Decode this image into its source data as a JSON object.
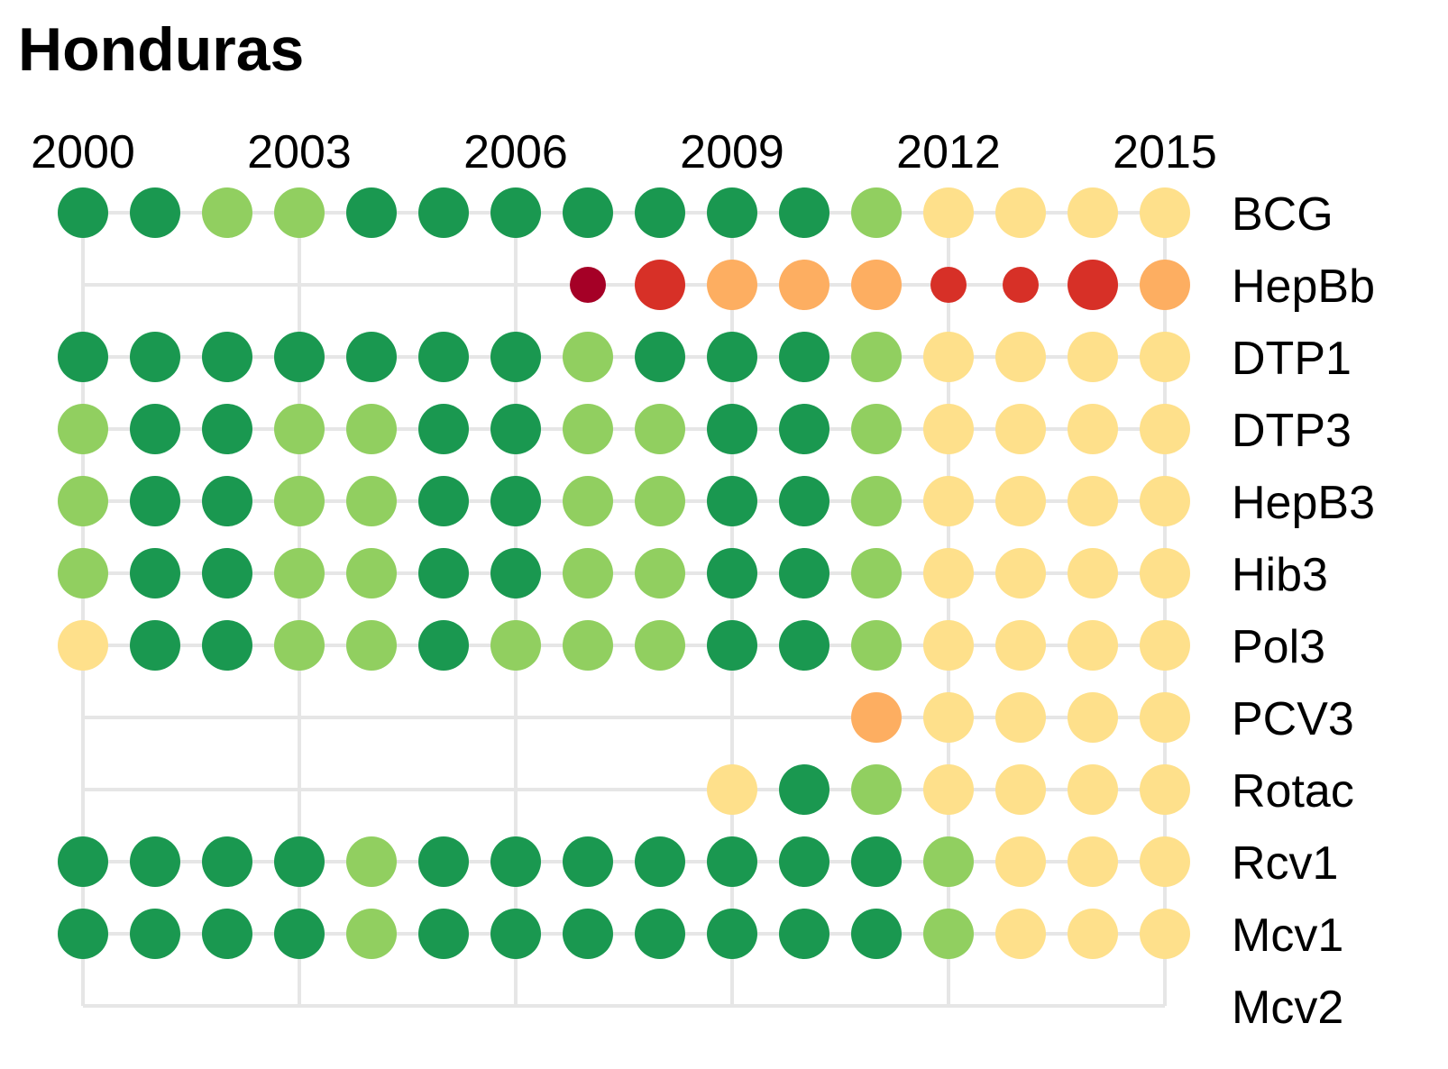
{
  "chart_data": {
    "type": "scatter",
    "title": "Honduras",
    "xlabel": "",
    "ylabel": "",
    "x_ticks": [
      "2000",
      "2003",
      "2006",
      "2009",
      "2012",
      "2015"
    ],
    "xlim": [
      2000,
      2015
    ],
    "years": [
      2000,
      2001,
      2002,
      2003,
      2004,
      2005,
      2006,
      2007,
      2008,
      2009,
      2010,
      2011,
      2012,
      2013,
      2014,
      2015
    ],
    "colors": {
      "dark_green": "#1a9850",
      "light_green": "#91cf60",
      "pale_yellow": "#fee08b",
      "light_orange": "#fdae61",
      "red": "#d73027",
      "dark_red": "#a50026"
    },
    "rows": [
      {
        "label": "BCG",
        "cells": [
          "dark_green",
          "dark_green",
          "light_green",
          "light_green",
          "dark_green",
          "dark_green",
          "dark_green",
          "dark_green",
          "dark_green",
          "dark_green",
          "dark_green",
          "light_green",
          "pale_yellow",
          "pale_yellow",
          "pale_yellow",
          "pale_yellow"
        ]
      },
      {
        "label": "HepBb",
        "cells": [
          null,
          null,
          null,
          null,
          null,
          null,
          null,
          "dark_red",
          "red",
          "light_orange",
          "light_orange",
          "light_orange",
          "red",
          "red",
          "red",
          "light_orange"
        ],
        "small": [
          false,
          false,
          false,
          false,
          false,
          false,
          false,
          true,
          false,
          false,
          false,
          false,
          true,
          true,
          false,
          false
        ]
      },
      {
        "label": "DTP1",
        "cells": [
          "dark_green",
          "dark_green",
          "dark_green",
          "dark_green",
          "dark_green",
          "dark_green",
          "dark_green",
          "light_green",
          "dark_green",
          "dark_green",
          "dark_green",
          "light_green",
          "pale_yellow",
          "pale_yellow",
          "pale_yellow",
          "pale_yellow"
        ]
      },
      {
        "label": "DTP3",
        "cells": [
          "light_green",
          "dark_green",
          "dark_green",
          "light_green",
          "light_green",
          "dark_green",
          "dark_green",
          "light_green",
          "light_green",
          "dark_green",
          "dark_green",
          "light_green",
          "pale_yellow",
          "pale_yellow",
          "pale_yellow",
          "pale_yellow"
        ]
      },
      {
        "label": "HepB3",
        "cells": [
          "light_green",
          "dark_green",
          "dark_green",
          "light_green",
          "light_green",
          "dark_green",
          "dark_green",
          "light_green",
          "light_green",
          "dark_green",
          "dark_green",
          "light_green",
          "pale_yellow",
          "pale_yellow",
          "pale_yellow",
          "pale_yellow"
        ]
      },
      {
        "label": "Hib3",
        "cells": [
          "light_green",
          "dark_green",
          "dark_green",
          "light_green",
          "light_green",
          "dark_green",
          "dark_green",
          "light_green",
          "light_green",
          "dark_green",
          "dark_green",
          "light_green",
          "pale_yellow",
          "pale_yellow",
          "pale_yellow",
          "pale_yellow"
        ]
      },
      {
        "label": "Pol3",
        "cells": [
          "pale_yellow",
          "dark_green",
          "dark_green",
          "light_green",
          "light_green",
          "dark_green",
          "light_green",
          "light_green",
          "light_green",
          "dark_green",
          "dark_green",
          "light_green",
          "pale_yellow",
          "pale_yellow",
          "pale_yellow",
          "pale_yellow"
        ]
      },
      {
        "label": "PCV3",
        "cells": [
          null,
          null,
          null,
          null,
          null,
          null,
          null,
          null,
          null,
          null,
          null,
          "light_orange",
          "pale_yellow",
          "pale_yellow",
          "pale_yellow",
          "pale_yellow"
        ]
      },
      {
        "label": "Rotac",
        "cells": [
          null,
          null,
          null,
          null,
          null,
          null,
          null,
          null,
          null,
          "pale_yellow",
          "dark_green",
          "light_green",
          "pale_yellow",
          "pale_yellow",
          "pale_yellow",
          "pale_yellow"
        ]
      },
      {
        "label": "Rcv1",
        "cells": [
          "dark_green",
          "dark_green",
          "dark_green",
          "dark_green",
          "light_green",
          "dark_green",
          "dark_green",
          "dark_green",
          "dark_green",
          "dark_green",
          "dark_green",
          "dark_green",
          "light_green",
          "pale_yellow",
          "pale_yellow",
          "pale_yellow"
        ]
      },
      {
        "label": "Mcv1",
        "cells": [
          "dark_green",
          "dark_green",
          "dark_green",
          "dark_green",
          "light_green",
          "dark_green",
          "dark_green",
          "dark_green",
          "dark_green",
          "dark_green",
          "dark_green",
          "dark_green",
          "light_green",
          "pale_yellow",
          "pale_yellow",
          "pale_yellow"
        ]
      },
      {
        "label": "Mcv2",
        "cells": [
          null,
          null,
          null,
          null,
          null,
          null,
          null,
          null,
          null,
          null,
          null,
          null,
          null,
          null,
          null,
          null
        ]
      }
    ]
  }
}
